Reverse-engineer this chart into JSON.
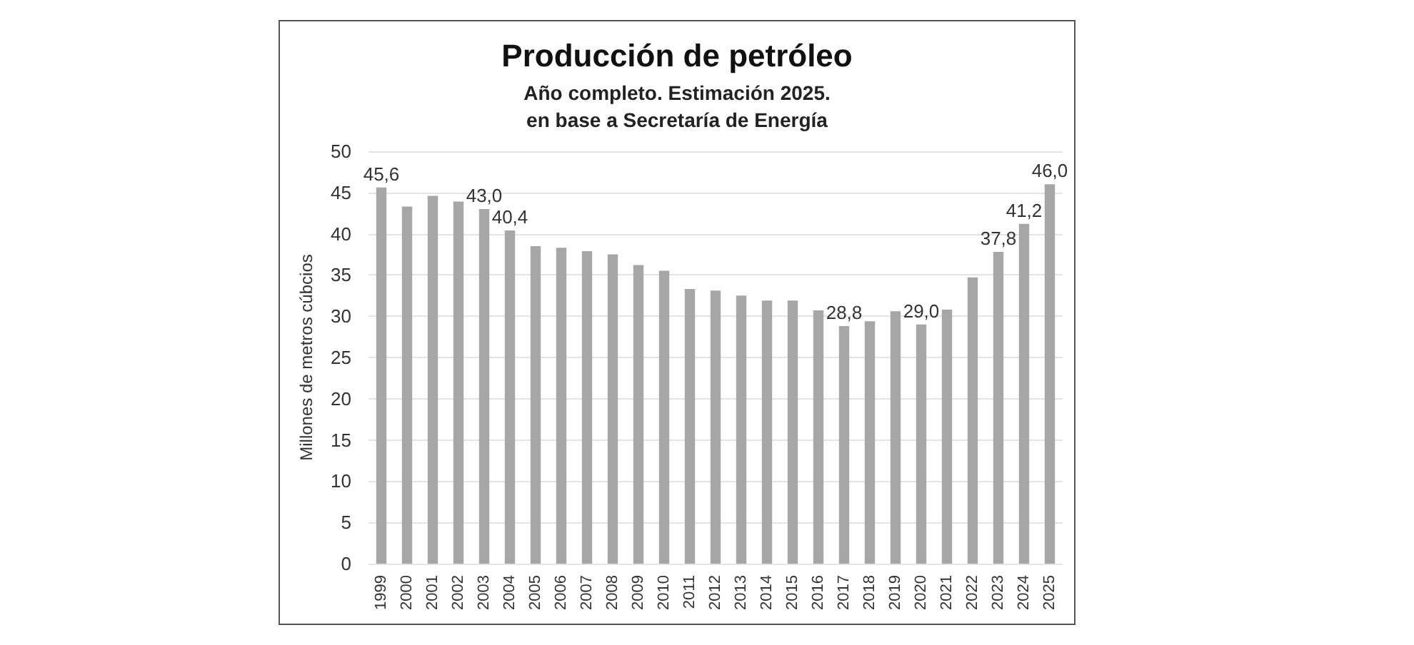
{
  "chart_data": {
    "type": "bar",
    "title": "Producción de petróleo",
    "subtitle": "Año completo. Estimación 2025.",
    "annotations": [
      "en base a Secretaría de Energía"
    ],
    "ylabel": "Millones de metros cúbcios",
    "categories": [
      "1999",
      "2000",
      "2001",
      "2002",
      "2003",
      "2004",
      "2005",
      "2006",
      "2007",
      "2008",
      "2009",
      "2010",
      "2011",
      "2012",
      "2013",
      "2014",
      "2015",
      "2016",
      "2017",
      "2018",
      "2019",
      "2020",
      "2021",
      "2022",
      "2023",
      "2024",
      "2025"
    ],
    "values": [
      45.6,
      43.3,
      44.6,
      43.9,
      43.0,
      40.4,
      38.5,
      38.3,
      37.9,
      37.5,
      36.2,
      35.5,
      33.3,
      33.1,
      32.5,
      31.9,
      31.9,
      30.7,
      28.8,
      29.4,
      30.6,
      29.0,
      30.8,
      34.7,
      37.8,
      41.2,
      46.0
    ],
    "value_labels": [
      "45,6",
      null,
      null,
      null,
      "43,0",
      "40,4",
      null,
      null,
      null,
      null,
      null,
      null,
      null,
      null,
      null,
      null,
      null,
      null,
      "28,8",
      null,
      null,
      "29,0",
      null,
      null,
      "37,8",
      "41,2",
      "46,0"
    ],
    "color": "#a6a6a6",
    "ylim": [
      0,
      50
    ],
    "yticks": [
      0,
      5,
      10,
      15,
      20,
      25,
      30,
      35,
      40,
      45,
      50
    ],
    "grid": "y"
  }
}
